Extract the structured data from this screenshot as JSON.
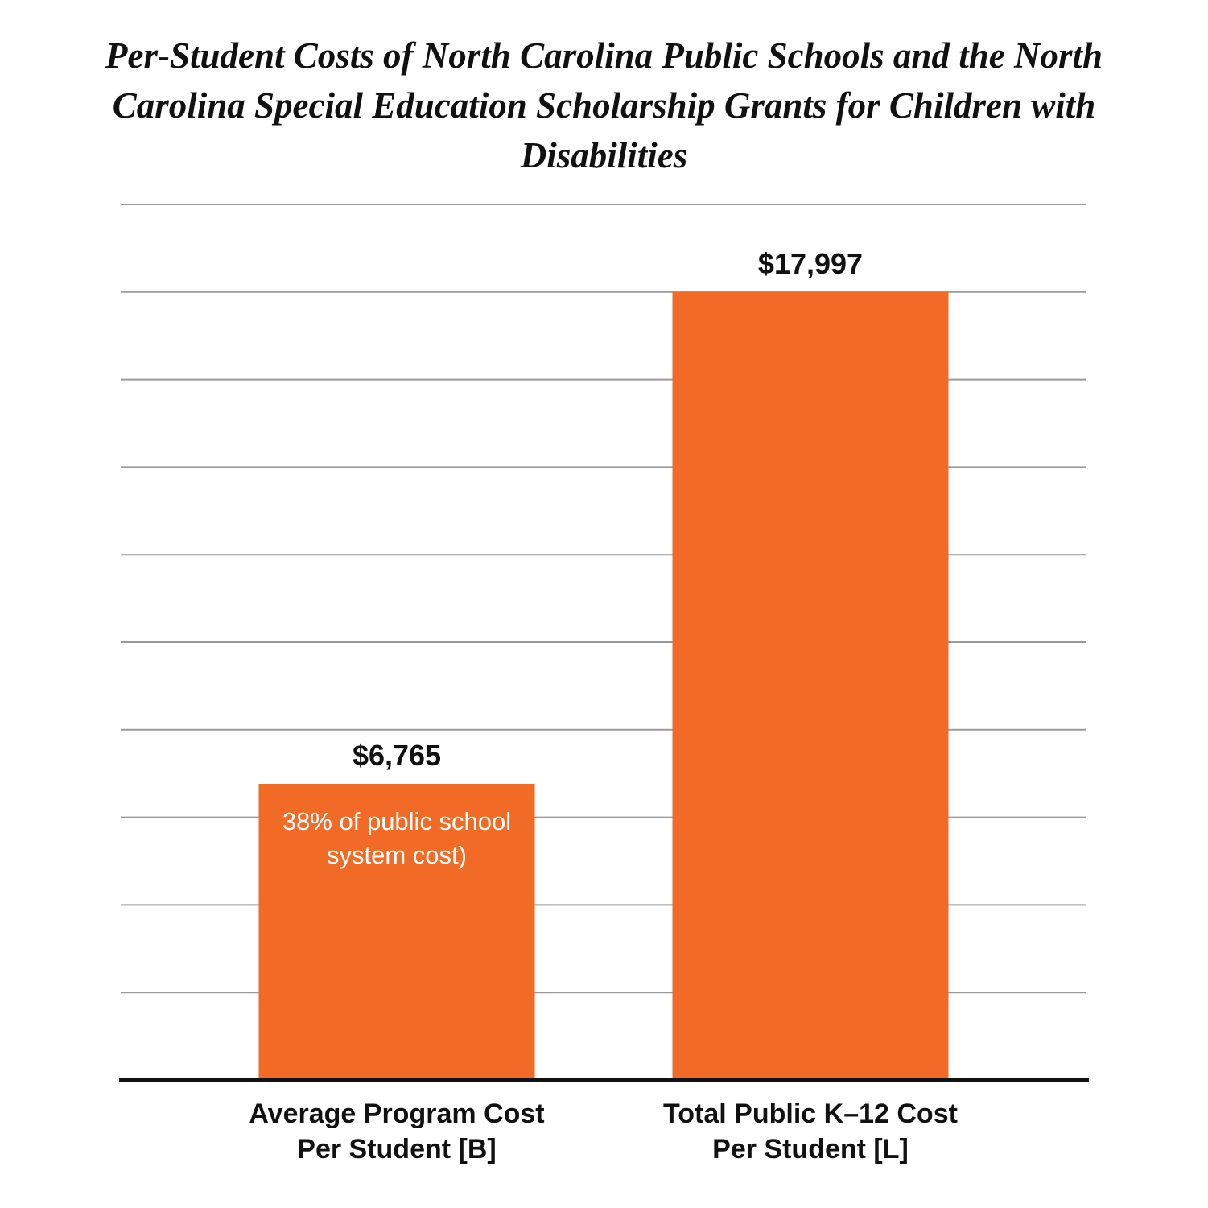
{
  "chart_data": {
    "type": "bar",
    "title": "Per-Student Costs of North Carolina Public Schools and the North Carolina Special Education Scholarship Grants for Children with Disabilities",
    "categories": [
      "Average Program Cost Per Student [B]",
      "Total Public K–12 Cost Per Student [L]"
    ],
    "values": [
      6765,
      17997
    ],
    "value_labels": [
      "$6,765",
      "$17,997"
    ],
    "annotation": "38% of public school system cost)",
    "color": "#f26b26",
    "ylim": [
      0,
      20000
    ],
    "yticks": [
      0,
      2000,
      4000,
      6000,
      8000,
      10000,
      12000,
      14000,
      16000,
      18000,
      20000
    ],
    "grid": true
  }
}
